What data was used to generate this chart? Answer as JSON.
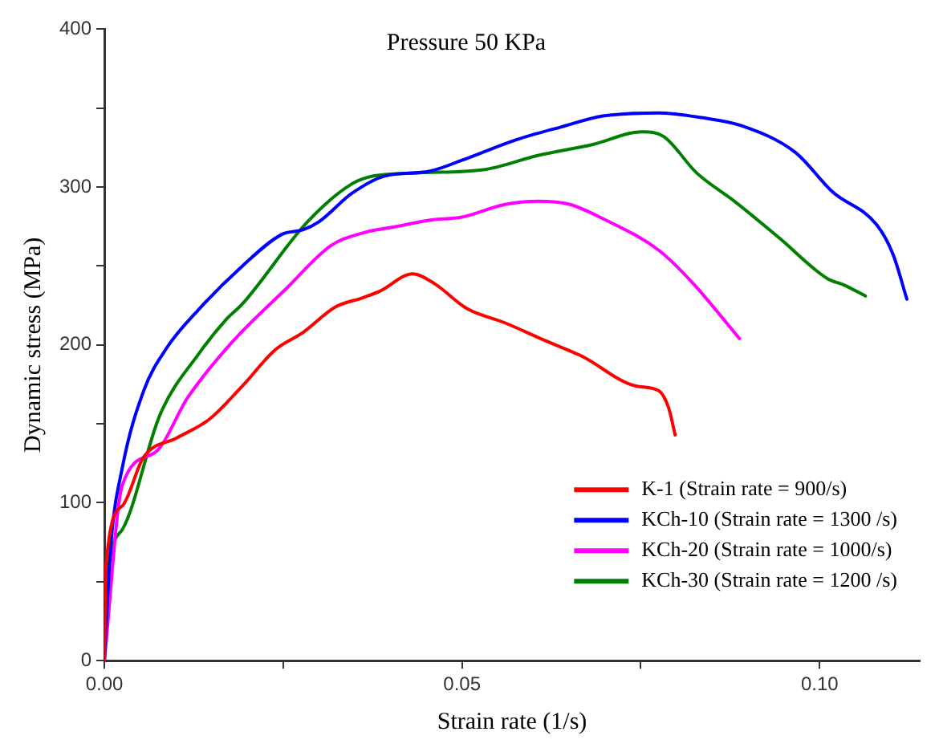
{
  "chart_data": {
    "type": "line",
    "title": "Pressure 50 KPa",
    "xlabel": "Strain rate (1/s)",
    "ylabel": "Dynamic stress (MPa)",
    "xlim": [
      0,
      0.114
    ],
    "xticks": [
      {
        "value": 0,
        "label": "0.00"
      },
      {
        "value": 0.025,
        "label": null
      },
      {
        "value": 0.05,
        "label": "0.05"
      },
      {
        "value": 0.075,
        "label": null
      },
      {
        "value": 0.1,
        "label": "0.10"
      }
    ],
    "ylim": [
      0,
      400
    ],
    "yticks": [
      0,
      {
        "value": 50,
        "label": null
      },
      100,
      {
        "value": 150,
        "label": null
      },
      200,
      {
        "value": 250,
        "label": null
      },
      300,
      {
        "value": 350,
        "label": null
      },
      400
    ],
    "grid": false,
    "legend": "bottom right",
    "marker": "none",
    "line_style": "solid",
    "series": [
      {
        "name": "K-1 (Strain rate = 900/s)",
        "color": "#ff0000",
        "x": [
          0,
          0.0002,
          0.0025,
          0.0055,
          0.0101,
          0.0147,
          0.0193,
          0.0239,
          0.0278,
          0.0323,
          0.0362,
          0.0385,
          0.0431,
          0.0461,
          0.0507,
          0.056,
          0.0615,
          0.0667,
          0.0743,
          0.0775,
          0.0789,
          0.0798
        ],
        "values": [
          0,
          59,
          98,
          129,
          141,
          153,
          174,
          197,
          208,
          224,
          230,
          234,
          245,
          239,
          223,
          214,
          203,
          193,
          174,
          171,
          160,
          143
        ]
      },
      {
        "name": "KCh-10 (Strain rate = 1300 /s)",
        "color": "#0000ff",
        "x": [
          0,
          0.0009,
          0.0025,
          0.0055,
          0.0087,
          0.0133,
          0.0193,
          0.0248,
          0.0278,
          0.03,
          0.0346,
          0.0392,
          0.0454,
          0.05,
          0.0576,
          0.0638,
          0.0697,
          0.0775,
          0.0835,
          0.089,
          0.0966,
          0.1018,
          0.108,
          0.1103,
          0.1122
        ],
        "values": [
          0,
          73,
          122,
          171,
          198,
          223,
          250,
          270,
          273,
          278,
          296,
          307,
          310,
          317,
          330,
          338,
          345,
          347,
          344,
          339,
          322,
          297,
          276,
          257,
          229
        ]
      },
      {
        "name": "KCh-20 (Strain rate = 1000/s)",
        "color": "#ff00ff",
        "x": [
          0,
          0.0025,
          0.0071,
          0.0117,
          0.0179,
          0.0255,
          0.0317,
          0.0362,
          0.0408,
          0.0454,
          0.05,
          0.056,
          0.0606,
          0.0651,
          0.0697,
          0.0775,
          0.0821,
          0.0888
        ],
        "values": [
          0,
          111,
          132,
          167,
          202,
          236,
          263,
          271,
          275,
          279,
          281,
          289,
          291,
          289,
          280,
          260,
          240,
          204
        ]
      },
      {
        "name": "KCh-30 (Strain rate = 1200 /s)",
        "color": "#008000",
        "x": [
          0,
          0.0002,
          0.0025,
          0.0078,
          0.0133,
          0.017,
          0.0193,
          0.0284,
          0.0346,
          0.0376,
          0.0438,
          0.053,
          0.0606,
          0.0683,
          0.0752,
          0.0782,
          0.0828,
          0.0881,
          0.0943,
          0.1011,
          0.1034,
          0.1064
        ],
        "values": [
          0,
          42,
          83,
          156,
          195,
          216,
          226,
          278,
          302,
          307,
          309,
          311,
          320,
          327,
          335,
          332,
          309,
          291,
          268,
          242,
          238,
          231
        ]
      }
    ]
  }
}
